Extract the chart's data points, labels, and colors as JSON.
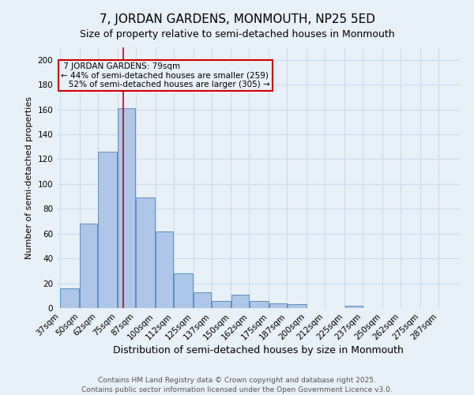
{
  "title": "7, JORDAN GARDENS, MONMOUTH, NP25 5ED",
  "subtitle": "Size of property relative to semi-detached houses in Monmouth",
  "xlabel": "Distribution of semi-detached houses by size in Monmouth",
  "ylabel": "Number of semi-detached properties",
  "footer_line1": "Contains HM Land Registry data © Crown copyright and database right 2025.",
  "footer_line2": "Contains public sector information licensed under the Open Government Licence v3.0.",
  "bins": [
    37,
    50,
    62,
    75,
    87,
    100,
    112,
    125,
    137,
    150,
    162,
    175,
    187,
    200,
    212,
    225,
    237,
    250,
    262,
    275,
    287
  ],
  "counts": [
    16,
    68,
    126,
    161,
    89,
    62,
    28,
    13,
    6,
    11,
    6,
    4,
    3,
    0,
    0,
    2,
    0,
    0,
    0,
    0,
    0
  ],
  "bar_color": "#aec6e8",
  "bar_edge_color": "#5a8fc2",
  "grid_color": "#ccddee",
  "bg_color": "#e8f0f8",
  "property_size": 79,
  "property_label": "7 JORDAN GARDENS: 79sqm",
  "pct_smaller": 44,
  "count_smaller": 259,
  "pct_larger": 52,
  "count_larger": 305,
  "vline_color": "#cc0000",
  "annotation_box_edge": "#cc0000",
  "ylim": [
    0,
    210
  ],
  "yticks": [
    0,
    20,
    40,
    60,
    80,
    100,
    120,
    140,
    160,
    180,
    200
  ],
  "title_fontsize": 11,
  "subtitle_fontsize": 9,
  "xlabel_fontsize": 9,
  "ylabel_fontsize": 8,
  "tick_fontsize": 7.5,
  "annot_fontsize": 7.5,
  "footer_fontsize": 6.5
}
